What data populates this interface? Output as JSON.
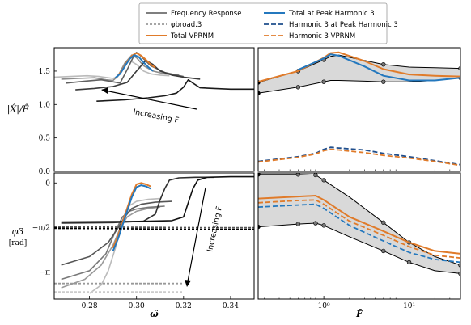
{
  "chart_data": [
    {
      "type": "line",
      "panel": "top-left",
      "ylabel": "|X̂|/F̂",
      "xlim": [
        0.265,
        0.35
      ],
      "ylim": [
        0.0,
        1.85
      ],
      "yticks": [
        0.0,
        0.5,
        1.0,
        1.5
      ],
      "ytick_labels": [
        "0.0",
        "0.5",
        "1.0",
        "1.5"
      ],
      "annotation": "Increasing F",
      "series": [
        {
          "name": "Frequency Response",
          "color": "#bbbbbb",
          "x": [
            0.265,
            0.272,
            0.279,
            0.284,
            0.288,
            0.29,
            0.292,
            0.294,
            0.297,
            0.3,
            0.303,
            0.306,
            0.31,
            0.314
          ],
          "y": [
            1.41,
            1.42,
            1.43,
            1.42,
            1.4,
            1.39,
            1.42,
            1.55,
            1.66,
            1.6,
            1.5,
            1.46,
            1.44,
            1.43
          ]
        },
        {
          "name": "Frequency Response",
          "color": "#8c8c8c",
          "x": [
            0.268,
            0.275,
            0.282,
            0.287,
            0.29,
            0.292,
            0.295,
            0.298,
            0.3,
            0.303,
            0.307,
            0.312,
            0.318
          ],
          "y": [
            1.38,
            1.39,
            1.4,
            1.37,
            1.36,
            1.42,
            1.62,
            1.74,
            1.7,
            1.58,
            1.5,
            1.46,
            1.44
          ]
        },
        {
          "name": "Frequency Response",
          "color": "#606060",
          "x": [
            0.27,
            0.278,
            0.285,
            0.29,
            0.293,
            0.296,
            0.299,
            0.3,
            0.302,
            0.306,
            0.312,
            0.32
          ],
          "y": [
            1.32,
            1.35,
            1.37,
            1.34,
            1.32,
            1.52,
            1.74,
            1.78,
            1.72,
            1.58,
            1.48,
            1.42
          ]
        },
        {
          "name": "Frequency Response",
          "color": "#3a3a3a",
          "x": [
            0.274,
            0.282,
            0.29,
            0.296,
            0.3,
            0.304,
            0.307,
            0.31,
            0.315,
            0.32,
            0.327
          ],
          "y": [
            1.22,
            1.24,
            1.27,
            1.33,
            1.5,
            1.66,
            1.6,
            1.5,
            1.44,
            1.41,
            1.38
          ]
        },
        {
          "name": "Frequency Response",
          "color": "#1a1a1a",
          "x": [
            0.283,
            0.295,
            0.305,
            0.312,
            0.317,
            0.32,
            0.322,
            0.324,
            0.327,
            0.333,
            0.34,
            0.35
          ],
          "y": [
            1.05,
            1.07,
            1.1,
            1.13,
            1.17,
            1.26,
            1.37,
            1.32,
            1.25,
            1.24,
            1.23,
            1.23
          ]
        },
        {
          "name": "Total VPRNM",
          "color": "#e07b2a",
          "x": [
            0.292,
            0.294,
            0.296,
            0.298,
            0.3,
            0.302,
            0.304,
            0.306,
            0.308
          ],
          "y": [
            1.43,
            1.52,
            1.64,
            1.73,
            1.77,
            1.73,
            1.67,
            1.6,
            1.55
          ]
        },
        {
          "name": "Total at Peak Harmonic 3",
          "color": "#2478be",
          "x": [
            0.291,
            0.293,
            0.295,
            0.297,
            0.299,
            0.301,
            0.303,
            0.305,
            0.307
          ],
          "y": [
            1.4,
            1.46,
            1.57,
            1.68,
            1.74,
            1.71,
            1.63,
            1.56,
            1.5
          ]
        }
      ]
    },
    {
      "type": "line",
      "panel": "top-right",
      "xlabel": "",
      "xscale": "log",
      "xlim": [
        0.17,
        40
      ],
      "ylim": [
        0.0,
        1.85
      ],
      "series": [
        {
          "name": "Frequency Response",
          "color": "#000000",
          "x": [
            0.17,
            0.5,
            1.0,
            1.2,
            1.5,
            3.0,
            5.0,
            10.0,
            20.0,
            40.0
          ],
          "y": [
            1.33,
            1.5,
            1.67,
            1.72,
            1.74,
            1.66,
            1.6,
            1.56,
            1.55,
            1.54
          ]
        },
        {
          "name": "Frequency Response",
          "color": "#000000",
          "x": [
            0.17,
            0.5,
            1.0,
            1.2,
            1.5,
            3.0,
            5.0,
            10.0,
            20.0,
            40.0
          ],
          "y": [
            1.17,
            1.26,
            1.34,
            1.36,
            1.36,
            1.35,
            1.34,
            1.34,
            1.36,
            1.4
          ]
        },
        {
          "name": "Total VPRNM",
          "color": "#e07b2a",
          "x": [
            0.17,
            0.5,
            1.0,
            1.2,
            1.5,
            3.0,
            5.0,
            10.0,
            20.0,
            40.0
          ],
          "y": [
            1.34,
            1.5,
            1.7,
            1.77,
            1.78,
            1.65,
            1.53,
            1.45,
            1.43,
            1.42
          ]
        },
        {
          "name": "Total at Peak Harmonic 3",
          "color": "#2478be",
          "x": [
            0.5,
            1.0,
            1.2,
            1.5,
            3.0,
            5.0,
            10.0,
            20.0,
            40.0
          ],
          "y": [
            1.52,
            1.69,
            1.75,
            1.73,
            1.57,
            1.43,
            1.36,
            1.36,
            1.4
          ]
        },
        {
          "name": "Harmonic 3 at Peak Harmonic 3",
          "color": "#1f4e8c",
          "x": [
            0.17,
            0.5,
            0.8,
            1.0,
            1.2,
            1.5,
            3.0,
            5.0,
            10.0,
            20.0,
            40.0
          ],
          "y": [
            0.15,
            0.22,
            0.27,
            0.33,
            0.36,
            0.35,
            0.32,
            0.27,
            0.22,
            0.16,
            0.1
          ]
        },
        {
          "name": "Harmonic 3 VPRNM",
          "color": "#e07b2a",
          "x": [
            0.17,
            0.5,
            0.8,
            1.0,
            1.2,
            1.5,
            3.0,
            5.0,
            10.0,
            20.0,
            40.0
          ],
          "y": [
            0.14,
            0.21,
            0.26,
            0.31,
            0.33,
            0.32,
            0.28,
            0.24,
            0.2,
            0.15,
            0.09
          ]
        }
      ]
    },
    {
      "type": "line",
      "panel": "bottom-left",
      "xlabel": "ω̂",
      "ylabel": "φ3",
      "ylabel_unit": "[rad]",
      "xlim": [
        0.265,
        0.35
      ],
      "ylim": [
        -4.1,
        0.35
      ],
      "xticks": [
        0.28,
        0.3,
        0.32,
        0.34
      ],
      "xtick_labels": [
        "0.28",
        "0.30",
        "0.32",
        "0.34"
      ],
      "yticks": [
        0.0,
        -1.5708,
        -3.1416
      ],
      "ytick_labels": [
        "0",
        "−π/2",
        "−π"
      ],
      "annotation": "Increasing F",
      "series": [
        {
          "name": "Frequency Response",
          "color": "#bbbbbb",
          "x": [
            0.28,
            0.285,
            0.288,
            0.291,
            0.293,
            0.295,
            0.297,
            0.3,
            0.305,
            0.31
          ],
          "y": [
            -3.9,
            -3.6,
            -3.1,
            -2.3,
            -1.6,
            -1.1,
            -0.8,
            -0.65,
            -0.58,
            -0.55
          ]
        },
        {
          "name": "Frequency Response",
          "color": "#9a9a9a",
          "x": [
            0.268,
            0.278,
            0.285,
            0.29,
            0.293,
            0.296,
            0.3,
            0.305,
            0.31
          ],
          "y": [
            -3.7,
            -3.4,
            -2.9,
            -2.2,
            -1.6,
            -1.2,
            -1.0,
            -0.9,
            -0.85
          ]
        },
        {
          "name": "Frequency Response",
          "color": "#777777",
          "x": [
            0.268,
            0.28,
            0.287,
            0.291,
            0.294,
            0.297,
            0.3,
            0.305,
            0.312
          ],
          "y": [
            -3.4,
            -3.1,
            -2.5,
            -1.7,
            -1.2,
            -1.0,
            -0.92,
            -0.86,
            -0.82
          ]
        },
        {
          "name": "Frequency Response",
          "color": "#555555",
          "x": [
            0.268,
            0.28,
            0.288,
            0.292,
            0.295,
            0.298,
            0.302,
            0.308,
            0.315
          ],
          "y": [
            -2.9,
            -2.6,
            -2.1,
            -1.6,
            -1.2,
            -0.9,
            -0.75,
            -0.68,
            -0.65
          ]
        },
        {
          "name": "Frequency Response",
          "color": "#2e2e2e",
          "x": [
            0.268,
            0.29,
            0.303,
            0.308,
            0.31,
            0.312,
            0.314,
            0.318,
            0.325,
            0.333
          ],
          "y": [
            -1.42,
            -1.4,
            -1.35,
            -1.1,
            -0.6,
            -0.2,
            0.1,
            0.18,
            0.2,
            0.2
          ]
        },
        {
          "name": "Frequency Response",
          "color": "#111111",
          "x": [
            0.268,
            0.3,
            0.315,
            0.32,
            0.322,
            0.324,
            0.326,
            0.33,
            0.34,
            0.35
          ],
          "y": [
            -1.38,
            -1.36,
            -1.33,
            -1.2,
            -0.7,
            -0.2,
            0.1,
            0.2,
            0.22,
            0.22
          ]
        },
        {
          "name": "Total VPRNM",
          "color": "#e07b2a",
          "x": [
            0.29,
            0.292,
            0.294,
            0.296,
            0.298,
            0.3,
            0.302,
            0.304,
            0.306
          ],
          "y": [
            -2.3,
            -1.9,
            -1.4,
            -0.9,
            -0.4,
            -0.05,
            0.0,
            -0.05,
            -0.12
          ]
        },
        {
          "name": "Total at Peak Harmonic 3",
          "color": "#2478be",
          "x": [
            0.29,
            0.292,
            0.294,
            0.296,
            0.298,
            0.3,
            0.302,
            0.304,
            0.306
          ],
          "y": [
            -2.4,
            -2.0,
            -1.5,
            -1.0,
            -0.5,
            -0.15,
            -0.08,
            -0.12,
            -0.2
          ]
        },
        {
          "name": "φbroad,3",
          "color": "#000000",
          "dashed": true,
          "x": [
            0.265,
            0.29,
            0.31,
            0.33,
            0.35
          ],
          "y": [
            -1.6,
            -1.61,
            -1.63,
            -1.64,
            -1.64
          ]
        },
        {
          "name": "φbroad,3",
          "color": "#555555",
          "dashed": true,
          "x": [
            0.265,
            0.29,
            0.31,
            0.33,
            0.35
          ],
          "y": [
            -1.55,
            -1.56,
            -1.57,
            -1.58,
            -1.58
          ]
        },
        {
          "name": "φbroad,3",
          "color": "#999999",
          "dashed": true,
          "x": [
            0.265,
            0.3,
            0.32
          ],
          "y": [
            -3.55,
            -3.55,
            -3.55
          ]
        },
        {
          "name": "φbroad,3",
          "color": "#cccccc",
          "dashed": true,
          "x": [
            0.265,
            0.3,
            0.32
          ],
          "y": [
            -3.85,
            -3.85,
            -3.85
          ]
        }
      ]
    },
    {
      "type": "line",
      "panel": "bottom-right",
      "xlabel": "F̂",
      "xscale": "log",
      "xlim": [
        0.17,
        40
      ],
      "ylim": [
        -4.1,
        0.35
      ],
      "xticks": [
        1,
        10
      ],
      "xtick_labels": [
        "10⁰",
        "10¹"
      ],
      "series": [
        {
          "name": "Frequency Response",
          "color": "#000000",
          "x": [
            0.17,
            0.5,
            0.8,
            1.0,
            2.0,
            5.0,
            10.0,
            20.0,
            40.0
          ],
          "y": [
            0.3,
            0.3,
            0.28,
            0.1,
            -0.5,
            -1.4,
            -2.1,
            -2.6,
            -2.9
          ]
        },
        {
          "name": "Frequency Response",
          "color": "#000000",
          "x": [
            0.17,
            0.5,
            0.8,
            1.0,
            2.0,
            5.0,
            10.0,
            20.0,
            40.0
          ],
          "y": [
            -1.55,
            -1.45,
            -1.42,
            -1.5,
            -1.9,
            -2.4,
            -2.8,
            -3.1,
            -3.2
          ]
        },
        {
          "name": "Total VPRNM",
          "color": "#e07b2a",
          "x": [
            0.17,
            0.5,
            0.8,
            1.0,
            2.0,
            5.0,
            10.0,
            20.0,
            40.0
          ],
          "y": [
            -0.55,
            -0.48,
            -0.45,
            -0.6,
            -1.2,
            -1.7,
            -2.1,
            -2.4,
            -2.5
          ]
        },
        {
          "name": "Harmonic 3 VPRNM",
          "color": "#e07b2a",
          "x": [
            0.17,
            0.5,
            0.8,
            1.0,
            2.0,
            5.0,
            10.0,
            20.0,
            40.0
          ],
          "y": [
            -0.7,
            -0.62,
            -0.6,
            -0.75,
            -1.35,
            -1.85,
            -2.25,
            -2.55,
            -2.65
          ]
        },
        {
          "name": "Harmonic 3 at Peak Harmonic 3",
          "color": "#2478be",
          "x": [
            0.17,
            0.5,
            0.8,
            1.0,
            2.0,
            5.0,
            10.0,
            20.0,
            40.0
          ],
          "y": [
            -0.85,
            -0.78,
            -0.75,
            -0.9,
            -1.5,
            -2.05,
            -2.45,
            -2.7,
            -2.8
          ]
        }
      ]
    }
  ],
  "legend": {
    "placement": "top-center",
    "entries": [
      {
        "label": "Frequency Response",
        "color": "#7f7f7f",
        "style": "solid"
      },
      {
        "label": "φbroad,3",
        "color": "#999999",
        "style": "dashed"
      },
      {
        "label": "Total VPRNM",
        "color": "#e07b2a",
        "style": "solid"
      },
      {
        "label": "Total at Peak Harmonic 3",
        "color": "#2478be",
        "style": "solid"
      },
      {
        "label": "Harmonic 3 at Peak Harmonic 3",
        "color": "#1f4e8c",
        "style": "dashed"
      },
      {
        "label": "Harmonic 3 VPRNM",
        "color": "#e07b2a",
        "style": "dashed"
      }
    ]
  },
  "shade_color": "#d9d9d9"
}
